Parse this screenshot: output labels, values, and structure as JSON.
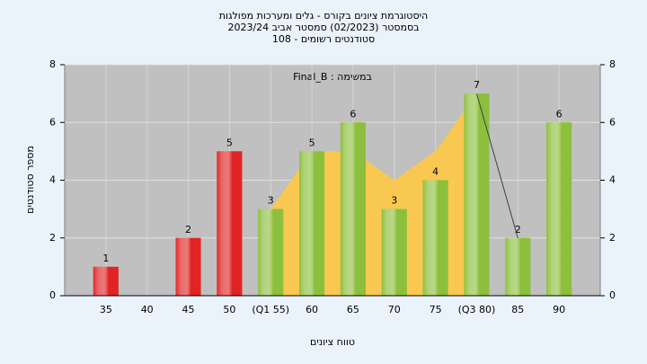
{
  "chart_data": {
    "type": "bar",
    "title": [
      "היסטוגרמת ציונים בקורס - גלים ומערכות מפולגות",
      "בסמסטר  (02/2023)  סמסטר אביב 2023/24",
      "סטודנטים רשומים - 108"
    ],
    "annotation": "במשימה : Final_B",
    "y_label": "מספר סטודנטים",
    "x_label": "טווח ציונים",
    "categories": [
      "35",
      "40",
      "45",
      "50",
      "(Q1 55)",
      "60",
      "65",
      "70",
      "75",
      "(Q3 80)",
      "85",
      "90"
    ],
    "values": [
      1,
      0,
      2,
      5,
      3,
      5,
      6,
      3,
      4,
      7,
      2,
      6
    ],
    "colors": [
      "#e02424",
      "#e02424",
      "#e02424",
      "#e02424",
      "#8cbf3c",
      "#8cbf3c",
      "#8cbf3c",
      "#8cbf3c",
      "#8cbf3c",
      "#8cbf3c",
      "#8cbf3c",
      "#8cbf3c"
    ],
    "area": {
      "color": "#f8c850",
      "values": [
        null,
        null,
        null,
        null,
        3,
        5,
        5,
        4,
        5,
        7,
        null,
        null
      ]
    },
    "line": {
      "color": "#404040",
      "values": [
        null,
        null,
        null,
        null,
        null,
        null,
        null,
        null,
        null,
        7,
        2,
        null
      ]
    },
    "ylim": [
      0,
      8
    ],
    "yticks": [
      0,
      2,
      4,
      6,
      8
    ],
    "y2lim": [
      0,
      8
    ],
    "y2ticks": [
      0,
      2,
      4,
      6,
      8
    ],
    "grid": true
  }
}
